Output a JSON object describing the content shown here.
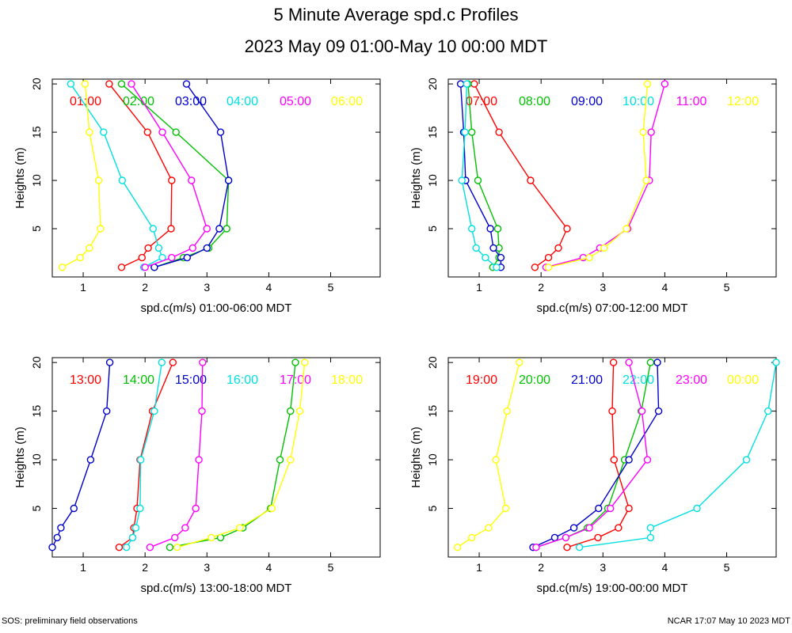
{
  "title": "5 Minute Average spd.c Profiles",
  "subtitle": "2023 May 09 01:00-May 10 00:00 MDT",
  "footer_left": "SOS: preliminary field observations",
  "footer_right": "NCAR 17:07 May 10 2023 MDT",
  "colors": [
    "#ff0000",
    "#00c000",
    "#0000cc",
    "#00e0e0",
    "#ff00ff",
    "#ffff00"
  ],
  "chart_data": [
    {
      "type": "line",
      "xlabel": "spd.c(m/s) 01:00-06:00 MDT",
      "ylabel": "Heights (m)",
      "xlim": [
        0.5,
        5.8
      ],
      "ylim": [
        0,
        20.5
      ],
      "xticks": [
        "1",
        "2",
        "3",
        "4",
        "5"
      ],
      "yticks": [
        "5",
        "10",
        "15",
        "20"
      ],
      "series": [
        {
          "name": "01:00",
          "heights": [
            1,
            2,
            3,
            5,
            10,
            15,
            20
          ],
          "values": [
            1.62,
            1.95,
            2.05,
            2.42,
            2.43,
            2.04,
            1.42
          ]
        },
        {
          "name": "02:00",
          "heights": [
            1,
            2,
            3,
            5,
            10,
            15,
            20
          ],
          "values": [
            2.15,
            2.62,
            3.03,
            3.32,
            3.35,
            2.5,
            1.62
          ]
        },
        {
          "name": "03:00",
          "heights": [
            1,
            2,
            3,
            5,
            10,
            15,
            20
          ],
          "values": [
            2.15,
            2.68,
            3.0,
            3.2,
            3.35,
            3.22,
            2.67
          ]
        },
        {
          "name": "04:00",
          "heights": [
            1,
            2,
            3,
            5,
            10,
            15,
            20
          ],
          "values": [
            1.98,
            2.28,
            2.22,
            2.13,
            1.63,
            1.33,
            0.8
          ]
        },
        {
          "name": "05:00",
          "heights": [
            1,
            2,
            3,
            5,
            10,
            15,
            20
          ],
          "values": [
            2.0,
            2.43,
            2.77,
            3.0,
            2.75,
            2.28,
            1.78
          ]
        },
        {
          "name": "06:00",
          "heights": [
            1,
            2,
            3,
            5,
            10,
            15,
            20
          ],
          "values": [
            0.66,
            0.95,
            1.1,
            1.28,
            1.25,
            1.1,
            1.03
          ]
        }
      ]
    },
    {
      "type": "line",
      "xlabel": "spd.c(m/s) 07:00-12:00 MDT",
      "ylabel": "Heights (m)",
      "xlim": [
        0.5,
        5.8
      ],
      "ylim": [
        0,
        20.5
      ],
      "xticks": [
        "1",
        "2",
        "3",
        "4",
        "5"
      ],
      "yticks": [
        "5",
        "10",
        "15",
        "20"
      ],
      "series": [
        {
          "name": "07:00",
          "heights": [
            1,
            2,
            3,
            5,
            10,
            15,
            20
          ],
          "values": [
            1.9,
            2.12,
            2.28,
            2.42,
            1.83,
            1.32,
            0.92
          ]
        },
        {
          "name": "08:00",
          "heights": [
            1,
            2,
            3,
            5,
            10,
            15,
            20
          ],
          "values": [
            1.22,
            1.32,
            1.32,
            1.3,
            0.98,
            0.88,
            0.82
          ]
        },
        {
          "name": "09:00",
          "heights": [
            1,
            2,
            3,
            5,
            10,
            15,
            20
          ],
          "values": [
            1.35,
            1.35,
            1.23,
            1.18,
            0.78,
            0.75,
            0.7
          ]
        },
        {
          "name": "10:00",
          "heights": [
            1,
            2,
            3,
            5,
            10,
            15,
            20
          ],
          "values": [
            1.28,
            1.1,
            0.95,
            0.88,
            0.72,
            0.77,
            0.8
          ]
        },
        {
          "name": "11:00",
          "heights": [
            1,
            2,
            3,
            5,
            10,
            15,
            20
          ],
          "values": [
            2.08,
            2.68,
            2.95,
            3.4,
            3.75,
            3.78,
            4.0
          ]
        },
        {
          "name": "12:00",
          "heights": [
            1,
            2,
            3,
            5,
            10,
            15,
            20
          ],
          "values": [
            2.12,
            2.78,
            3.02,
            3.38,
            3.7,
            3.65,
            3.72
          ]
        }
      ]
    },
    {
      "type": "line",
      "xlabel": "spd.c(m/s) 13:00-18:00 MDT",
      "ylabel": "Heights (m)",
      "xlim": [
        0.5,
        5.8
      ],
      "ylim": [
        0,
        20.5
      ],
      "xticks": [
        "1",
        "2",
        "3",
        "4",
        "5"
      ],
      "yticks": [
        "5",
        "10",
        "15",
        "20"
      ],
      "series": [
        {
          "name": "13:00",
          "heights": [
            1,
            2,
            3,
            5,
            10,
            15,
            20
          ],
          "values": [
            1.58,
            1.8,
            1.82,
            1.87,
            1.92,
            2.12,
            2.45
          ]
        },
        {
          "name": "14:00",
          "heights": [
            1,
            2,
            3,
            5,
            10,
            15,
            20
          ],
          "values": [
            2.4,
            3.22,
            3.58,
            4.03,
            4.18,
            4.35,
            4.43
          ]
        },
        {
          "name": "15:00",
          "heights": [
            1,
            2,
            3,
            5,
            10,
            15,
            20
          ],
          "values": [
            0.5,
            0.58,
            0.64,
            0.85,
            1.12,
            1.38,
            1.43
          ]
        },
        {
          "name": "16:00",
          "heights": [
            1,
            2,
            3,
            5,
            10,
            15,
            20
          ],
          "values": [
            1.7,
            1.8,
            1.85,
            1.92,
            1.93,
            2.15,
            2.27
          ]
        },
        {
          "name": "17:00",
          "heights": [
            1,
            2,
            3,
            5,
            10,
            15,
            20
          ],
          "values": [
            2.08,
            2.48,
            2.65,
            2.82,
            2.87,
            2.92,
            2.93
          ]
        },
        {
          "name": "18:00",
          "heights": [
            1,
            2,
            3,
            5,
            10,
            15,
            20
          ],
          "values": [
            2.52,
            3.07,
            3.53,
            4.05,
            4.35,
            4.5,
            4.58
          ]
        }
      ]
    },
    {
      "type": "line",
      "xlabel": "spd.c(m/s) 19:00-00:00 MDT",
      "ylabel": "Heights (m)",
      "xlim": [
        0.5,
        5.8
      ],
      "ylim": [
        0,
        20.5
      ],
      "xticks": [
        "1",
        "2",
        "3",
        "4",
        "5"
      ],
      "yticks": [
        "5",
        "10",
        "15",
        "20"
      ],
      "series": [
        {
          "name": "19:00",
          "heights": [
            1,
            2,
            3,
            5,
            10,
            15,
            20
          ],
          "values": [
            2.42,
            2.92,
            3.25,
            3.42,
            3.18,
            3.15,
            3.17
          ]
        },
        {
          "name": "20:00",
          "heights": [
            1,
            2,
            3,
            5,
            10,
            15,
            20
          ],
          "values": [
            1.92,
            2.4,
            2.75,
            3.08,
            3.35,
            3.62,
            3.77
          ]
        },
        {
          "name": "21:00",
          "heights": [
            1,
            2,
            3,
            5,
            10,
            15,
            20
          ],
          "values": [
            1.87,
            2.22,
            2.53,
            2.93,
            3.42,
            3.9,
            3.88
          ]
        },
        {
          "name": "22:00",
          "heights": [
            1,
            2,
            3,
            5,
            10,
            15,
            20
          ],
          "values": [
            2.62,
            3.77,
            3.77,
            4.52,
            5.32,
            5.67,
            5.8
          ]
        },
        {
          "name": "23:00",
          "heights": [
            1,
            2,
            3,
            5,
            10,
            15,
            20
          ],
          "values": [
            1.92,
            2.4,
            2.78,
            3.12,
            3.72,
            3.63,
            3.42
          ]
        },
        {
          "name": "00:00",
          "heights": [
            1,
            2,
            3,
            5,
            10,
            15,
            20
          ],
          "values": [
            0.65,
            0.88,
            1.15,
            1.43,
            1.27,
            1.45,
            1.65
          ]
        }
      ]
    }
  ]
}
